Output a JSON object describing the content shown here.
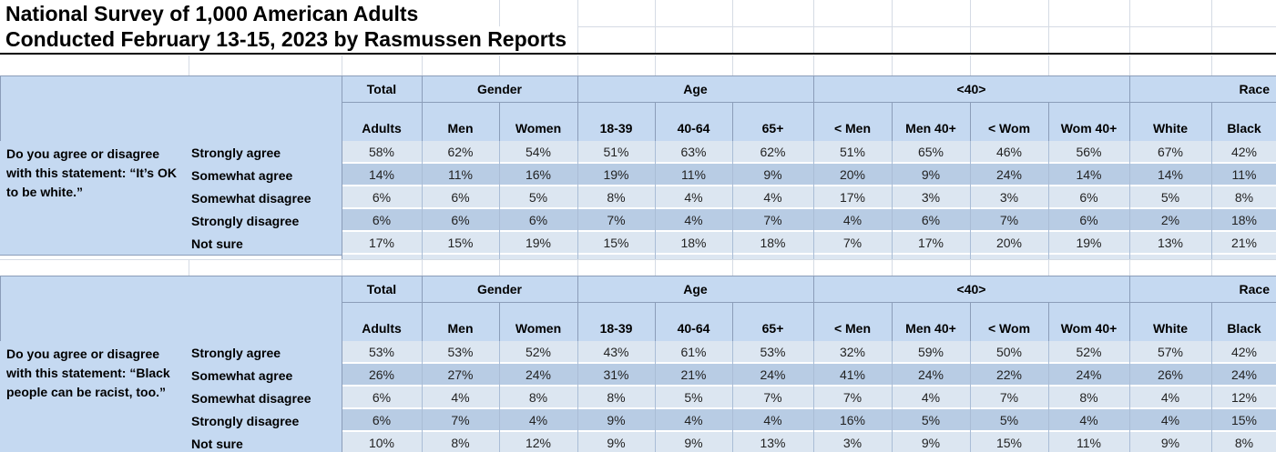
{
  "title": {
    "line1": "National Survey of 1,000 American Adults",
    "line2": "Conducted February 13-15, 2023 by Rasmussen Reports"
  },
  "columns": {
    "groups": [
      {
        "label": "Total",
        "span": 1
      },
      {
        "label": "Gender",
        "span": 2
      },
      {
        "label": "Age",
        "span": 3
      },
      {
        "label": "<40>",
        "span": 4
      },
      {
        "label": "Race",
        "span": 2,
        "align": "right"
      }
    ],
    "subheaders": [
      "Adults",
      "Men",
      "Women",
      "18-39",
      "40-64",
      "65+",
      "< Men",
      "Men 40+",
      "< Wom",
      "Wom 40+",
      "White",
      "Black"
    ]
  },
  "tables": [
    {
      "question": "Do you agree or disagree\nwith this statement: “It’s OK\nto be white.”",
      "rows": [
        {
          "label": "Strongly agree",
          "values": [
            "58%",
            "62%",
            "54%",
            "51%",
            "63%",
            "62%",
            "51%",
            "65%",
            "46%",
            "56%",
            "67%",
            "42%"
          ]
        },
        {
          "label": "Somewhat agree",
          "values": [
            "14%",
            "11%",
            "16%",
            "19%",
            "11%",
            "9%",
            "20%",
            "9%",
            "24%",
            "14%",
            "14%",
            "11%"
          ]
        },
        {
          "label": "Somewhat disagree",
          "values": [
            "6%",
            "6%",
            "5%",
            "8%",
            "4%",
            "4%",
            "17%",
            "3%",
            "3%",
            "6%",
            "5%",
            "8%"
          ]
        },
        {
          "label": "Strongly disagree",
          "values": [
            "6%",
            "6%",
            "6%",
            "7%",
            "4%",
            "7%",
            "4%",
            "6%",
            "7%",
            "6%",
            "2%",
            "18%"
          ]
        },
        {
          "label": "Not sure",
          "values": [
            "17%",
            "15%",
            "19%",
            "15%",
            "18%",
            "18%",
            "7%",
            "17%",
            "20%",
            "19%",
            "13%",
            "21%"
          ]
        }
      ]
    },
    {
      "question": "Do you agree or disagree\nwith this statement: “Black\npeople can be racist, too.”",
      "rows": [
        {
          "label": "Strongly agree",
          "values": [
            "53%",
            "53%",
            "52%",
            "43%",
            "61%",
            "53%",
            "32%",
            "59%",
            "50%",
            "52%",
            "57%",
            "42%"
          ]
        },
        {
          "label": "Somewhat agree",
          "values": [
            "26%",
            "27%",
            "24%",
            "31%",
            "21%",
            "24%",
            "41%",
            "24%",
            "22%",
            "24%",
            "26%",
            "24%"
          ]
        },
        {
          "label": "Somewhat disagree",
          "values": [
            "6%",
            "4%",
            "8%",
            "8%",
            "5%",
            "7%",
            "7%",
            "4%",
            "7%",
            "8%",
            "4%",
            "12%"
          ]
        },
        {
          "label": "Strongly disagree",
          "values": [
            "6%",
            "7%",
            "4%",
            "9%",
            "4%",
            "4%",
            "16%",
            "5%",
            "5%",
            "4%",
            "4%",
            "15%"
          ]
        },
        {
          "label": "Not sure",
          "values": [
            "10%",
            "8%",
            "12%",
            "9%",
            "9%",
            "13%",
            "3%",
            "9%",
            "15%",
            "11%",
            "9%",
            "8%"
          ]
        }
      ]
    }
  ],
  "colors": {
    "header": "#c5d9f1",
    "bandLight": "#dce6f1",
    "bandDark": "#b8cce4",
    "border": "#8b9db9",
    "colsep": "#aabdd6",
    "grid": "#d5dbe4"
  }
}
